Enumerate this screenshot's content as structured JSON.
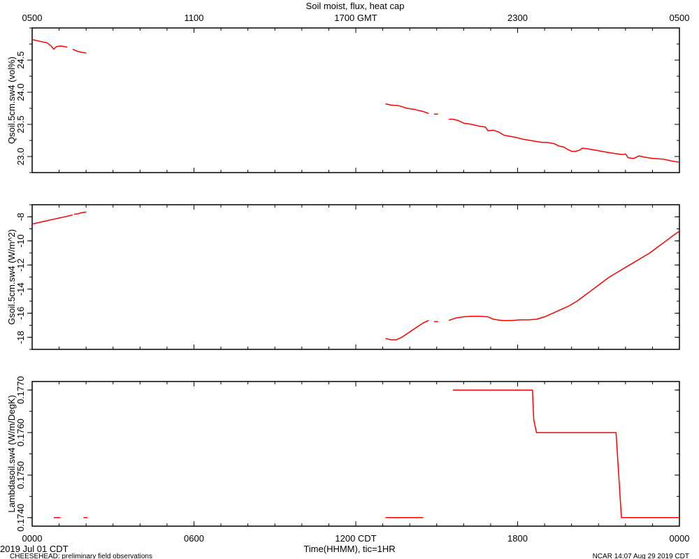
{
  "page": {
    "title": "Soil moist, flux, heat cap",
    "date_label": "2019 Jul 01 CDT",
    "footer_left": "CHEESEHEAD: preliminary field observations",
    "footer_right": "NCAR 14:07 Aug 29 2019 CDT",
    "x_axis_title": "Time(HHMM), tic=1HR"
  },
  "colors": {
    "series": "#ff0000",
    "axes": "#000000"
  },
  "chart_data": [
    {
      "type": "line",
      "ylabel": "Qsoil.5cm.sw4 (vol%)",
      "ylim": [
        22.75,
        25.0
      ],
      "yticks": [
        23.0,
        23.5,
        24.0,
        24.5
      ],
      "ytick_labels": [
        "23.0",
        "23.5",
        "24.0",
        "24.5"
      ],
      "x_unit": "hours since 0000 CDT",
      "xlim": [
        0,
        24
      ],
      "series": [
        {
          "segments": [
            [
              [
                0.0,
                24.82
              ],
              [
                0.3,
                24.79
              ],
              [
                0.55,
                24.77
              ],
              [
                0.7,
                24.72
              ],
              [
                0.8,
                24.67
              ],
              [
                0.9,
                24.71
              ],
              [
                1.05,
                24.72
              ],
              [
                1.2,
                24.71
              ],
              [
                1.3,
                24.7
              ]
            ],
            [
              [
                1.5,
                24.67
              ],
              [
                1.65,
                24.64
              ],
              [
                1.85,
                24.62
              ],
              [
                2.0,
                24.61
              ]
            ],
            [
              [
                13.1,
                23.82
              ],
              [
                13.3,
                23.8
              ],
              [
                13.6,
                23.79
              ],
              [
                13.75,
                23.77
              ],
              [
                13.9,
                23.75
              ],
              [
                14.2,
                23.73
              ],
              [
                14.5,
                23.7
              ],
              [
                14.7,
                23.67
              ]
            ],
            [
              [
                14.9,
                23.66
              ],
              [
                15.05,
                23.66
              ]
            ],
            [
              [
                15.45,
                23.58
              ],
              [
                15.6,
                23.58
              ],
              [
                15.8,
                23.56
              ],
              [
                16.0,
                23.52
              ],
              [
                16.3,
                23.5
              ],
              [
                16.6,
                23.47
              ],
              [
                16.8,
                23.46
              ],
              [
                16.9,
                23.4
              ],
              [
                17.1,
                23.41
              ],
              [
                17.3,
                23.38
              ],
              [
                17.5,
                23.33
              ],
              [
                17.9,
                23.3
              ],
              [
                18.2,
                23.27
              ],
              [
                18.6,
                23.24
              ],
              [
                18.9,
                23.22
              ],
              [
                19.1,
                23.22
              ],
              [
                19.35,
                23.2
              ],
              [
                19.55,
                23.16
              ],
              [
                19.7,
                23.15
              ],
              [
                19.85,
                23.11
              ],
              [
                20.0,
                23.08
              ],
              [
                20.15,
                23.08
              ],
              [
                20.3,
                23.1
              ],
              [
                20.4,
                23.13
              ],
              [
                20.6,
                23.12
              ],
              [
                21.0,
                23.09
              ],
              [
                21.4,
                23.06
              ],
              [
                21.7,
                23.04
              ],
              [
                21.9,
                23.03
              ],
              [
                22.0,
                23.04
              ],
              [
                22.1,
                22.98
              ],
              [
                22.3,
                22.97
              ],
              [
                22.5,
                23.01
              ],
              [
                22.7,
                22.99
              ],
              [
                23.0,
                22.97
              ],
              [
                23.4,
                22.96
              ],
              [
                23.7,
                22.93
              ],
              [
                24.0,
                22.91
              ]
            ]
          ]
        }
      ]
    },
    {
      "type": "line",
      "ylabel": "Gsoil.5cm.sw4 (W/m^2)",
      "ylim": [
        -19.0,
        -7.0
      ],
      "yticks": [
        -18,
        -16,
        -14,
        -12,
        -10,
        -8
      ],
      "ytick_labels": [
        "-18",
        "-16",
        "-14",
        "-12",
        "-10",
        "-8"
      ],
      "x_unit": "hours since 0000 CDT",
      "xlim": [
        0,
        24
      ],
      "series": [
        {
          "segments": [
            [
              [
                0.0,
                -8.6
              ],
              [
                0.2,
                -8.5
              ],
              [
                0.4,
                -8.4
              ],
              [
                0.6,
                -8.3
              ],
              [
                0.8,
                -8.2
              ],
              [
                1.0,
                -8.1
              ],
              [
                1.2,
                -8.0
              ],
              [
                1.4,
                -7.9
              ],
              [
                1.5,
                -7.85
              ]
            ],
            [
              [
                1.55,
                -7.8
              ],
              [
                1.7,
                -7.75
              ],
              [
                1.85,
                -7.65
              ],
              [
                2.0,
                -7.6
              ]
            ],
            [
              [
                13.1,
                -18.1
              ],
              [
                13.3,
                -18.2
              ],
              [
                13.5,
                -18.2
              ],
              [
                13.7,
                -18.0
              ],
              [
                13.9,
                -17.7
              ],
              [
                14.1,
                -17.4
              ],
              [
                14.3,
                -17.1
              ],
              [
                14.5,
                -16.8
              ],
              [
                14.7,
                -16.6
              ]
            ],
            [
              [
                14.9,
                -16.7
              ],
              [
                15.05,
                -16.7
              ]
            ],
            [
              [
                15.45,
                -16.6
              ],
              [
                15.7,
                -16.4
              ],
              [
                16.0,
                -16.3
              ],
              [
                16.3,
                -16.25
              ],
              [
                16.6,
                -16.25
              ],
              [
                16.9,
                -16.3
              ],
              [
                17.1,
                -16.5
              ],
              [
                17.4,
                -16.6
              ],
              [
                17.8,
                -16.6
              ],
              [
                18.1,
                -16.55
              ],
              [
                18.4,
                -16.55
              ],
              [
                18.7,
                -16.5
              ],
              [
                19.0,
                -16.3
              ],
              [
                19.3,
                -16.0
              ],
              [
                19.6,
                -15.7
              ],
              [
                19.9,
                -15.4
              ],
              [
                20.2,
                -15.0
              ],
              [
                20.5,
                -14.5
              ],
              [
                20.8,
                -14.0
              ],
              [
                21.1,
                -13.5
              ],
              [
                21.4,
                -13.0
              ],
              [
                21.7,
                -12.6
              ],
              [
                22.0,
                -12.2
              ],
              [
                22.3,
                -11.8
              ],
              [
                22.6,
                -11.4
              ],
              [
                22.9,
                -11.0
              ],
              [
                23.2,
                -10.5
              ],
              [
                23.5,
                -10.0
              ],
              [
                23.8,
                -9.5
              ],
              [
                24.0,
                -9.2
              ]
            ]
          ]
        }
      ]
    },
    {
      "type": "line",
      "ylabel": "Lambdasoil.sw4 (W/m/DegK)",
      "ylim": [
        0.1738,
        0.1772
      ],
      "yticks": [
        0.174,
        0.175,
        0.176,
        0.177
      ],
      "ytick_labels": [
        "0.1740",
        "0.1750",
        "0.1760",
        "0.1770"
      ],
      "x_unit": "hours since 0000 CDT",
      "xlim": [
        0,
        24
      ],
      "series": [
        {
          "segments": [
            [
              [
                0.8,
                0.174
              ],
              [
                1.05,
                0.174
              ]
            ],
            [
              [
                1.9,
                0.174
              ],
              [
                2.05,
                0.174
              ]
            ],
            [
              [
                13.1,
                0.174
              ],
              [
                14.5,
                0.174
              ]
            ],
            [
              [
                15.6,
                0.177
              ],
              [
                18.55,
                0.177
              ],
              [
                18.6,
                0.1763
              ],
              [
                18.7,
                0.176
              ],
              [
                21.65,
                0.176
              ],
              [
                21.85,
                0.174
              ],
              [
                24.0,
                0.174
              ]
            ]
          ]
        }
      ]
    }
  ],
  "axes": {
    "top_tick_labels": [
      "0500",
      "1100",
      "1700 GMT",
      "2300",
      "0500"
    ],
    "top_tick_hours": [
      0,
      6,
      12,
      18,
      24
    ],
    "bottom_tick_labels": [
      "0000",
      "0600",
      "1200 CDT",
      "1800",
      "0000"
    ],
    "bottom_tick_hours": [
      0,
      6,
      12,
      18,
      24
    ]
  }
}
